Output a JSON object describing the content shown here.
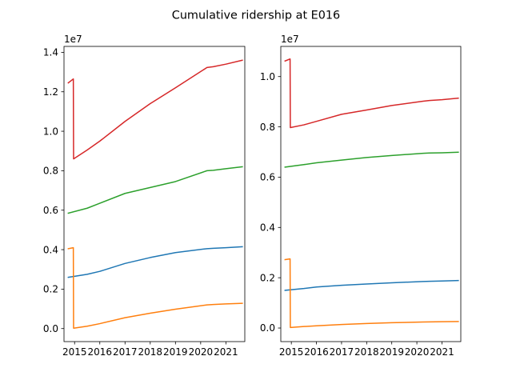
{
  "figure": {
    "title": "Cumulative ridership at E016",
    "background": "#ffffff"
  },
  "chart_data": [
    {
      "type": "line",
      "offset_label": "1e7",
      "x_tick_labels": [
        "2015",
        "2016",
        "2017",
        "2018",
        "2019",
        "2020",
        "2021"
      ],
      "y_tick_labels": [
        "0.0",
        "0.2",
        "0.4",
        "0.6",
        "0.8",
        "1.0",
        "1.2",
        "1.4"
      ],
      "xlim": [
        2014.58,
        2021.75
      ],
      "ylim": [
        -0.066,
        1.43
      ],
      "series": [
        {
          "color": "#1f77b4",
          "x": [
            2014.75,
            2015.5,
            2016.0,
            2017.0,
            2018.0,
            2019.0,
            2020.25,
            2020.5,
            2021.0,
            2021.65
          ],
          "y": [
            0.26,
            0.275,
            0.29,
            0.33,
            0.36,
            0.385,
            0.405,
            0.407,
            0.41,
            0.415
          ]
        },
        {
          "color": "#ff7f0e",
          "x": [
            2014.75,
            2014.95,
            2014.96,
            2015.5,
            2016.0,
            2017.0,
            2018.0,
            2019.0,
            2020.25,
            2020.5,
            2021.0,
            2021.65
          ],
          "y": [
            0.405,
            0.41,
            0.002,
            0.012,
            0.025,
            0.055,
            0.078,
            0.098,
            0.12,
            0.122,
            0.125,
            0.128
          ]
        },
        {
          "color": "#2ca02c",
          "x": [
            2014.75,
            2015.5,
            2016.0,
            2017.0,
            2018.0,
            2019.0,
            2020.25,
            2020.5,
            2021.0,
            2021.65
          ],
          "y": [
            0.585,
            0.61,
            0.635,
            0.685,
            0.715,
            0.745,
            0.8,
            0.802,
            0.81,
            0.82
          ]
        },
        {
          "color": "#d62728",
          "x": [
            2014.75,
            2014.95,
            2014.96,
            2015.5,
            2016.0,
            2017.0,
            2018.0,
            2019.0,
            2020.25,
            2020.5,
            2021.0,
            2021.65
          ],
          "y": [
            1.245,
            1.265,
            0.86,
            0.905,
            0.95,
            1.05,
            1.14,
            1.22,
            1.323,
            1.327,
            1.34,
            1.36
          ]
        }
      ]
    },
    {
      "type": "line",
      "offset_label": "1e7",
      "x_tick_labels": [
        "2015",
        "2016",
        "2017",
        "2018",
        "2019",
        "2020",
        "2021"
      ],
      "y_tick_labels": [
        "0.0",
        "0.2",
        "0.4",
        "0.6",
        "0.8",
        "1.0"
      ],
      "xlim": [
        2014.58,
        2021.75
      ],
      "ylim": [
        -0.054,
        1.12
      ],
      "series": [
        {
          "color": "#1f77b4",
          "x": [
            2014.75,
            2015.5,
            2016.0,
            2017.0,
            2018.0,
            2019.0,
            2020.25,
            2020.5,
            2021.0,
            2021.65
          ],
          "y": [
            0.15,
            0.157,
            0.163,
            0.17,
            0.175,
            0.18,
            0.185,
            0.186,
            0.187,
            0.189
          ]
        },
        {
          "color": "#ff7f0e",
          "x": [
            2014.75,
            2014.95,
            2014.96,
            2015.5,
            2016.0,
            2017.0,
            2018.0,
            2019.0,
            2020.25,
            2020.5,
            2021.0,
            2021.65
          ],
          "y": [
            0.272,
            0.275,
            0.002,
            0.006,
            0.009,
            0.014,
            0.018,
            0.021,
            0.024,
            0.0245,
            0.025,
            0.026
          ]
        },
        {
          "color": "#2ca02c",
          "x": [
            2014.75,
            2015.5,
            2016.0,
            2017.0,
            2018.0,
            2019.0,
            2020.25,
            2020.5,
            2021.0,
            2021.65
          ],
          "y": [
            0.64,
            0.65,
            0.657,
            0.668,
            0.678,
            0.686,
            0.695,
            0.696,
            0.697,
            0.699
          ]
        },
        {
          "color": "#d62728",
          "x": [
            2014.75,
            2014.95,
            2014.96,
            2015.5,
            2016.0,
            2017.0,
            2018.0,
            2019.0,
            2020.25,
            2020.5,
            2021.0,
            2021.65
          ],
          "y": [
            1.062,
            1.07,
            0.797,
            0.808,
            0.822,
            0.85,
            0.867,
            0.885,
            0.902,
            0.905,
            0.908,
            0.914
          ]
        }
      ]
    }
  ]
}
